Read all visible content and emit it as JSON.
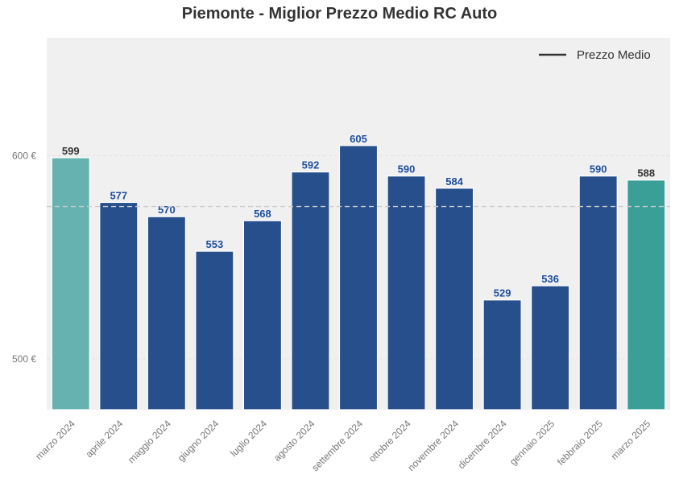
{
  "chart_data": {
    "type": "bar",
    "title": "Piemonte - Miglior Prezzo Medio RC Auto",
    "xlabel": "",
    "ylabel": "",
    "categories": [
      "marzo 2024",
      "aprile 2024",
      "maggio 2024",
      "giugno 2024",
      "luglio 2024",
      "agosto 2024",
      "settembre 2024",
      "ottobre 2024",
      "novembre 2024",
      "dicembre 2024",
      "gennaio 2025",
      "febbraio 2025",
      "marzo 2025"
    ],
    "values": [
      599,
      577,
      570,
      553,
      568,
      592,
      605,
      590,
      584,
      529,
      536,
      590,
      588
    ],
    "value_labels": [
      "599",
      "577",
      "570",
      "553",
      "568",
      "592",
      "605",
      "590",
      "584",
      "529",
      "536",
      "590",
      "588"
    ],
    "bar_colors": [
      "#66b2b0",
      "#274f8c",
      "#274f8c",
      "#274f8c",
      "#274f8c",
      "#274f8c",
      "#274f8c",
      "#274f8c",
      "#274f8c",
      "#274f8c",
      "#274f8c",
      "#274f8c",
      "#3a9f97"
    ],
    "label_colors": [
      "#333333",
      "#1f4e99",
      "#1f4e99",
      "#1f4e99",
      "#1f4e99",
      "#1f4e99",
      "#1f4e99",
      "#1f4e99",
      "#1f4e99",
      "#1f4e99",
      "#1f4e99",
      "#1f4e99",
      "#333333"
    ],
    "ylim": [
      475,
      658
    ],
    "yticks": [
      500,
      600
    ],
    "ytick_labels": [
      "500 €",
      "600 €"
    ],
    "mean_line": {
      "name": "Prezzo Medio",
      "value": 575,
      "color": "#cccccc"
    },
    "legend": {
      "position": "top-right",
      "label": "Prezzo Medio",
      "color": "#333333"
    },
    "grid": true,
    "background": "#f0f0f0"
  }
}
